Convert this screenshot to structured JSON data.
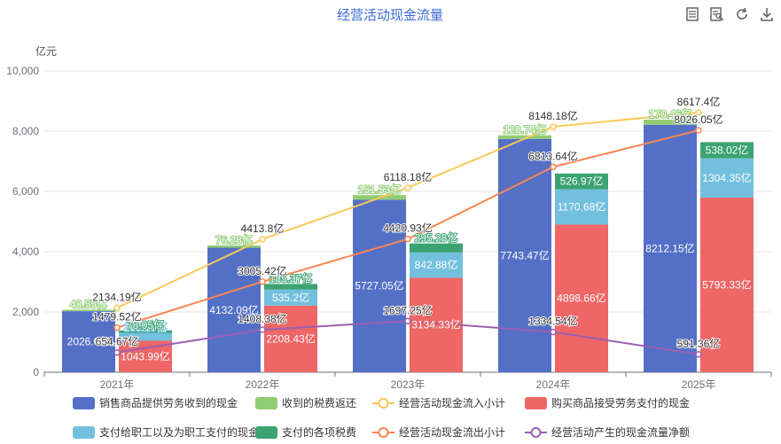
{
  "toolbar": {
    "icons": [
      "data-view-icon",
      "save-image-icon",
      "restore-icon",
      "download-icon"
    ]
  },
  "chart_data": {
    "type": "bar",
    "title": "经营活动现金流量",
    "ylabel": "亿元",
    "ylim": [
      0,
      10000
    ],
    "yticks": [
      "0",
      "2,000",
      "4,000",
      "6,000",
      "8,000",
      "10,000"
    ],
    "categories": [
      "2021年",
      "2022年",
      "2023年",
      "2024年",
      "2025年"
    ],
    "grid": true,
    "legend_position": "bottom",
    "series": [
      {
        "name": "销售商品提供劳务收到的现金",
        "kind": "bar",
        "stack": "in",
        "color": "#5470c6",
        "values": [
          2026.0,
          4132.09,
          5727.05,
          7743.47,
          8212.15
        ],
        "labels": [
          "2026.0亿",
          "4132.09亿",
          "5727.05亿",
          "7743.47亿",
          "8212.15亿"
        ]
      },
      {
        "name": "收到的税费返还",
        "kind": "bar",
        "stack": "in",
        "color": "#91cc75",
        "values": [
          48.55,
          76.28,
          151.53,
          120.74,
          170.46
        ],
        "labels": [
          "48.55亿",
          "76.28亿",
          "151.53亿",
          "120.74亿",
          "170.46亿"
        ]
      },
      {
        "name": "经营活动现金流入小计",
        "kind": "line",
        "color": "#fac858",
        "values": [
          2134.19,
          4413.8,
          6118.18,
          8148.18,
          8617.4
        ],
        "labels": [
          "2134.19亿",
          "4413.8亿",
          "6118.18亿",
          "8148.18亿",
          "8617.4亿"
        ]
      },
      {
        "name": "购买商品接受劳务支付的现金",
        "kind": "bar",
        "stack": "out",
        "color": "#ee6666",
        "values": [
          1043.99,
          2208.43,
          3134.33,
          4898.66,
          5793.33
        ],
        "labels": [
          "1043.99亿",
          "2208.43亿",
          "3134.33亿",
          "4898.66亿",
          "5793.33亿"
        ]
      },
      {
        "name": "支付给职工以及为职工支付的现金",
        "kind": "bar",
        "stack": "out",
        "color": "#73c0de",
        "values": [
          265.16,
          535.2,
          842.88,
          1170.68,
          1304.35
        ],
        "labels": [
          "265.16亿",
          "535.2亿",
          "842.88亿",
          "1170.68亿",
          "1304.35亿"
        ]
      },
      {
        "name": "支付的各项税费",
        "kind": "bar",
        "stack": "out",
        "color": "#3ba272",
        "values": [
          78.05,
          185.37,
          295.28,
          526.97,
          538.02
        ],
        "labels": [
          "78.05亿",
          "185.37亿",
          "295.28亿",
          "526.97亿",
          "538.02亿"
        ]
      },
      {
        "name": "经营活动现金流出小计",
        "kind": "line",
        "color": "#fc8452",
        "values": [
          1479.52,
          3005.42,
          4420.93,
          6813.64,
          8026.05
        ],
        "labels": [
          "1479.52亿",
          "3005.42亿",
          "4420.93亿",
          "6813.64亿",
          "8026.05亿"
        ]
      },
      {
        "name": "经营活动产生的现金流量净额",
        "kind": "line",
        "color": "#9a60b4",
        "values": [
          654.67,
          1408.38,
          1697.25,
          1334.54,
          591.36
        ],
        "labels": [
          "654.67亿",
          "1408.38亿",
          "1697.25亿",
          "1334.54亿",
          "591.36亿"
        ]
      }
    ]
  }
}
